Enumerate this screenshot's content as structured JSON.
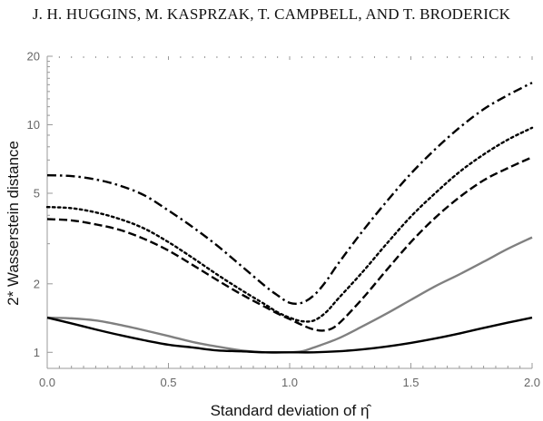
{
  "header": {
    "text": "J. H. HUGGINS, M. KASPRZAK, T. CAMPBELL, AND T. BRODERICK"
  },
  "chart_data": {
    "type": "line",
    "title": "",
    "xlabel": "Standard deviation of η̂",
    "ylabel": "2* Wasserstein distance",
    "xlim": [
      0,
      2
    ],
    "ylim": [
      0.85,
      20
    ],
    "yscale": "log",
    "xticks": [
      0,
      0.5,
      1,
      1.5,
      2
    ],
    "xtick_labels": [
      "0.0",
      "0.5",
      "1.0",
      "1.5",
      "2.0"
    ],
    "yticks": [
      1,
      2,
      5,
      10,
      20
    ],
    "ytick_labels": [
      "1",
      "2",
      "5",
      "10",
      "20"
    ],
    "grid": false,
    "legend": "none",
    "series": [
      {
        "style": "dashdot",
        "color": "#000000",
        "x": [
          0,
          0.1,
          0.2,
          0.3,
          0.4,
          0.5,
          0.6,
          0.7,
          0.8,
          0.9,
          0.95,
          1.0,
          1.05,
          1.1,
          1.15,
          1.2,
          1.3,
          1.4,
          1.5,
          1.6,
          1.7,
          1.8,
          1.9,
          2.0
        ],
        "y": [
          6.0,
          5.95,
          5.75,
          5.4,
          4.9,
          4.2,
          3.55,
          2.95,
          2.4,
          1.95,
          1.78,
          1.65,
          1.65,
          1.78,
          2.05,
          2.45,
          3.4,
          4.6,
          6.1,
          7.8,
          9.7,
          11.7,
          13.5,
          15.3
        ]
      },
      {
        "style": "dotted",
        "color": "#000000",
        "x": [
          0,
          0.1,
          0.2,
          0.3,
          0.4,
          0.5,
          0.6,
          0.7,
          0.8,
          0.9,
          0.95,
          1.0,
          1.05,
          1.1,
          1.15,
          1.2,
          1.3,
          1.4,
          1.5,
          1.6,
          1.7,
          1.8,
          1.9,
          2.0
        ],
        "y": [
          4.35,
          4.3,
          4.12,
          3.85,
          3.5,
          3.05,
          2.6,
          2.2,
          1.88,
          1.62,
          1.5,
          1.42,
          1.37,
          1.38,
          1.5,
          1.72,
          2.25,
          3.0,
          3.95,
          5.0,
          6.2,
          7.4,
          8.6,
          9.7
        ]
      },
      {
        "style": "dashed",
        "color": "#000000",
        "x": [
          0,
          0.1,
          0.2,
          0.3,
          0.4,
          0.5,
          0.6,
          0.7,
          0.8,
          0.9,
          0.95,
          1.0,
          1.05,
          1.1,
          1.15,
          1.2,
          1.3,
          1.4,
          1.5,
          1.6,
          1.7,
          1.8,
          1.9,
          2.0
        ],
        "y": [
          3.85,
          3.8,
          3.65,
          3.45,
          3.15,
          2.8,
          2.42,
          2.08,
          1.8,
          1.58,
          1.48,
          1.4,
          1.32,
          1.26,
          1.25,
          1.33,
          1.72,
          2.3,
          3.05,
          3.9,
          4.8,
          5.7,
          6.45,
          7.2
        ]
      },
      {
        "style": "solid",
        "color": "#808080",
        "x": [
          0,
          0.1,
          0.2,
          0.3,
          0.4,
          0.5,
          0.6,
          0.7,
          0.8,
          0.9,
          1.0,
          1.05,
          1.1,
          1.2,
          1.3,
          1.4,
          1.5,
          1.6,
          1.7,
          1.8,
          1.9,
          2.0
        ],
        "y": [
          1.42,
          1.41,
          1.38,
          1.32,
          1.25,
          1.18,
          1.11,
          1.06,
          1.02,
          1.0,
          1.0,
          1.01,
          1.05,
          1.15,
          1.3,
          1.48,
          1.7,
          1.95,
          2.2,
          2.5,
          2.85,
          3.2
        ]
      },
      {
        "style": "solid",
        "color": "#000000",
        "x": [
          0,
          0.1,
          0.2,
          0.3,
          0.4,
          0.5,
          0.6,
          0.7,
          0.8,
          0.9,
          1.0,
          1.1,
          1.2,
          1.3,
          1.4,
          1.5,
          1.6,
          1.7,
          1.8,
          1.9,
          2.0
        ],
        "y": [
          1.42,
          1.34,
          1.26,
          1.19,
          1.13,
          1.08,
          1.05,
          1.02,
          1.01,
          1.0,
          1.0,
          1.0,
          1.01,
          1.03,
          1.06,
          1.1,
          1.15,
          1.21,
          1.28,
          1.35,
          1.42
        ]
      }
    ]
  }
}
